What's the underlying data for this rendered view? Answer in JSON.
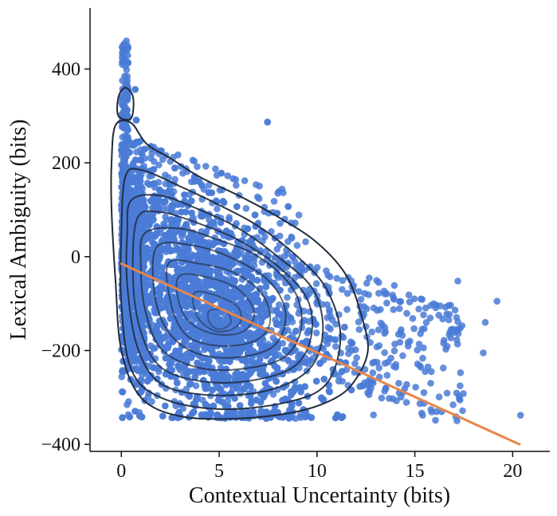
{
  "chart_data": {
    "type": "scatter",
    "title": "",
    "xlabel": "Contextual Uncertainty (bits)",
    "ylabel": "Lexical Ambiguity (bits)",
    "xlim": [
      -1.6,
      21.9
    ],
    "ylim": [
      -415,
      530
    ],
    "xticks": [
      0,
      5,
      10,
      15,
      20
    ],
    "xtick_labels": [
      "0",
      "5",
      "10",
      "15",
      "20"
    ],
    "yticks": [
      -400,
      -200,
      0,
      200,
      400
    ],
    "ytick_labels": [
      "−400",
      "−200",
      "0",
      "200",
      "400"
    ],
    "colors": {
      "points": "#4a7bd6",
      "regression": "#e8854a",
      "contour": "#1f2a3a"
    },
    "scatter_description": "dense cloud, approx 6000 points",
    "regression_line": {
      "x": [
        0,
        20.35
      ],
      "y": [
        -15,
        -400
      ]
    },
    "contours": [
      {
        "level": 1,
        "points": [
          [
            -0.3,
            280
          ],
          [
            0.5,
            285
          ],
          [
            1.3,
            240
          ],
          [
            2.5,
            210
          ],
          [
            4,
            170
          ],
          [
            6,
            130
          ],
          [
            8,
            85
          ],
          [
            10,
            30
          ],
          [
            11.5,
            -40
          ],
          [
            12.3,
            -130
          ],
          [
            12.6,
            -200
          ],
          [
            12,
            -260
          ],
          [
            11,
            -300
          ],
          [
            9,
            -330
          ],
          [
            6,
            -345
          ],
          [
            3,
            -340
          ],
          [
            1,
            -300
          ],
          [
            0,
            -200
          ],
          [
            -0.3,
            -50
          ],
          [
            -0.5,
            100
          ],
          [
            -0.5,
            200
          ]
        ]
      },
      {
        "level": 1,
        "points": [
          [
            -0.15,
            300
          ],
          [
            0.5,
            295
          ],
          [
            0.6,
            340
          ],
          [
            0.2,
            360
          ],
          [
            -0.15,
            340
          ]
        ]
      },
      {
        "level": 2,
        "points": [
          [
            0.2,
            170
          ],
          [
            1,
            185
          ],
          [
            3,
            150
          ],
          [
            5,
            110
          ],
          [
            7,
            65
          ],
          [
            9,
            0
          ],
          [
            10.5,
            -70
          ],
          [
            11.2,
            -170
          ],
          [
            10.5,
            -270
          ],
          [
            8.5,
            -310
          ],
          [
            5,
            -325
          ],
          [
            2,
            -300
          ],
          [
            0.5,
            -240
          ],
          [
            0,
            -100
          ],
          [
            0,
            50
          ]
        ]
      },
      {
        "level": 3,
        "points": [
          [
            0.5,
            120
          ],
          [
            2,
            130
          ],
          [
            4,
            100
          ],
          [
            6,
            60
          ],
          [
            8,
            0
          ],
          [
            9.8,
            -70
          ],
          [
            10.3,
            -160
          ],
          [
            9.6,
            -240
          ],
          [
            7.5,
            -285
          ],
          [
            4.5,
            -295
          ],
          [
            2,
            -270
          ],
          [
            0.8,
            -190
          ],
          [
            0.3,
            -60
          ],
          [
            0.3,
            50
          ]
        ]
      },
      {
        "level": 4,
        "points": [
          [
            0.8,
            80
          ],
          [
            2,
            95
          ],
          [
            4,
            70
          ],
          [
            6,
            35
          ],
          [
            8,
            -20
          ],
          [
            9.5,
            -90
          ],
          [
            9.7,
            -170
          ],
          [
            8.8,
            -235
          ],
          [
            6.5,
            -265
          ],
          [
            4,
            -265
          ],
          [
            2,
            -235
          ],
          [
            1,
            -160
          ],
          [
            0.6,
            -50
          ]
        ]
      },
      {
        "level": 5,
        "points": [
          [
            1.2,
            50
          ],
          [
            3,
            60
          ],
          [
            5,
            35
          ],
          [
            7,
            0
          ],
          [
            8.8,
            -70
          ],
          [
            9.2,
            -150
          ],
          [
            8.3,
            -215
          ],
          [
            6,
            -240
          ],
          [
            3.8,
            -235
          ],
          [
            2,
            -195
          ],
          [
            1.2,
            -110
          ],
          [
            1,
            -20
          ]
        ]
      },
      {
        "level": 6,
        "points": [
          [
            1.8,
            20
          ],
          [
            3.5,
            25
          ],
          [
            5.5,
            0
          ],
          [
            7.5,
            -50
          ],
          [
            8.4,
            -120
          ],
          [
            7.8,
            -190
          ],
          [
            5.8,
            -215
          ],
          [
            3.8,
            -205
          ],
          [
            2.4,
            -160
          ],
          [
            1.7,
            -80
          ]
        ]
      },
      {
        "level": 7,
        "points": [
          [
            2.4,
            -15
          ],
          [
            4,
            -15
          ],
          [
            5.8,
            -35
          ],
          [
            7.2,
            -80
          ],
          [
            7.6,
            -140
          ],
          [
            6.8,
            -180
          ],
          [
            5,
            -190
          ],
          [
            3.4,
            -170
          ],
          [
            2.6,
            -110
          ]
        ]
      },
      {
        "level": 8,
        "points": [
          [
            3,
            -40
          ],
          [
            4.5,
            -45
          ],
          [
            6,
            -70
          ],
          [
            6.8,
            -120
          ],
          [
            6.2,
            -160
          ],
          [
            4.8,
            -165
          ],
          [
            3.5,
            -140
          ],
          [
            2.9,
            -90
          ]
        ]
      },
      {
        "level": 9,
        "points": [
          [
            3.8,
            -75
          ],
          [
            5,
            -85
          ],
          [
            6,
            -110
          ],
          [
            6,
            -145
          ],
          [
            5,
            -160
          ],
          [
            4.1,
            -140
          ],
          [
            3.7,
            -105
          ]
        ]
      },
      {
        "level": 10,
        "points": [
          [
            4.5,
            -115
          ],
          [
            5.3,
            -115
          ],
          [
            5.6,
            -140
          ],
          [
            5,
            -155
          ],
          [
            4.5,
            -140
          ]
        ]
      }
    ]
  }
}
